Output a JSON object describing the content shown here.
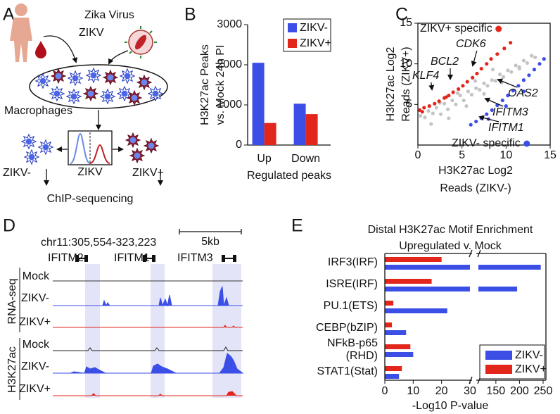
{
  "panel_labels": [
    "A",
    "B",
    "C",
    "D",
    "E"
  ],
  "diagram_a": {
    "virus_title": "Zika Virus",
    "virus_label": "ZIKV",
    "cells_label": "Macrophages",
    "negative_label": "ZIKV-",
    "histogram_label": "ZIKV",
    "positive_label": "ZIKV+",
    "assay_label": "ChIP-sequencing"
  },
  "tracks_d": {
    "locus": "chr11:305,554-323,223",
    "scale": "5kb",
    "genes": [
      "IFITM2",
      "IFITM1",
      "IFITM3"
    ],
    "groups": [
      "RNA-seq",
      "H3K27ac"
    ],
    "tracks": [
      "Mock",
      "ZIKV-",
      "ZIKV+",
      "Mock",
      "ZIKV-",
      "ZIKV+"
    ]
  },
  "chart_data": [
    {
      "type": "bar",
      "ylabel": [
        "H3K27ac Peaks",
        "vs. Mock 24h PI"
      ],
      "xlabel": "Regulated peaks",
      "categories": [
        "Up",
        "Down"
      ],
      "series": [
        {
          "name": "ZIKV-",
          "color": "#3b4ee6",
          "values": [
            2050,
            1030
          ]
        },
        {
          "name": "ZIKV+",
          "color": "#e2261b",
          "values": [
            550,
            770
          ]
        }
      ],
      "ylim": [
        0,
        3000
      ],
      "yticks": [
        0,
        1000,
        2000,
        3000
      ],
      "legend": "upper-right"
    },
    {
      "type": "scatter",
      "xlabel": [
        "H3K27ac Log2",
        "Reads (ZIKV-)"
      ],
      "ylabel": [
        "H3K27ac Log2",
        "Reads (ZIKV+)"
      ],
      "xlim": [
        0,
        15
      ],
      "ylim": [
        0,
        15
      ],
      "xticks": [
        0,
        5,
        10,
        15
      ],
      "yticks": [
        5,
        10,
        15
      ],
      "series": [
        {
          "color": "#c4c4c4",
          "x": [
            0.3,
            0.8,
            1.2,
            1.7,
            2.1,
            2.6,
            3.0,
            3.4,
            3.9,
            4.3,
            4.8,
            5.2,
            5.7,
            6.1,
            6.6,
            7.0,
            7.5,
            7.9,
            8.4,
            8.8,
            9.3,
            9.7,
            10.2,
            10.6,
            11.1,
            11.5,
            12.0,
            12.4,
            12.9,
            13.3,
            1.5,
            3.5,
            5.5,
            7.5,
            9.5,
            11.5,
            2.5,
            4.5,
            6.5,
            8.5
          ],
          "y": [
            3.6,
            3.4,
            4.2,
            3.9,
            4.6,
            3.8,
            5.1,
            4.4,
            5.5,
            5.0,
            6.1,
            5.5,
            6.6,
            6.2,
            7.0,
            6.8,
            7.6,
            7.3,
            8.0,
            7.9,
            8.7,
            8.4,
            9.2,
            9.0,
            9.8,
            9.6,
            10.4,
            10.1,
            11.0,
            10.8,
            2.6,
            3.3,
            4.8,
            6.3,
            7.7,
            9.4,
            5.2,
            6.4,
            7.9,
            9.3
          ]
        },
        {
          "name": "ZIKV+ specific",
          "color": "#e2261b",
          "x": [
            0.2,
            0.7,
            1.3,
            1.9,
            2.4,
            3.0,
            3.5,
            4.0,
            4.6,
            5.1,
            5.6,
            6.2,
            6.7,
            7.2,
            7.8,
            8.3,
            0.5,
            3.2,
            9.0,
            9.8,
            10.5
          ],
          "y": [
            4.3,
            4.6,
            4.8,
            5.1,
            5.4,
            5.8,
            6.1,
            6.5,
            6.9,
            7.3,
            7.8,
            8.3,
            8.8,
            9.4,
            10.0,
            10.6,
            4.1,
            5.9,
            11.2,
            11.9,
            12.6
          ]
        },
        {
          "name": "ZIKV- specific",
          "color": "#3b4ee6",
          "x": [
            6.0,
            6.6,
            7.2,
            7.8,
            8.4,
            9.0,
            9.6,
            10.2,
            10.8,
            11.4,
            12.0,
            12.6,
            13.2,
            13.8,
            14.3,
            8.0,
            10.0,
            12.0
          ],
          "y": [
            2.5,
            2.9,
            3.3,
            3.8,
            4.3,
            4.9,
            5.5,
            6.1,
            6.7,
            7.3,
            8.0,
            8.6,
            9.3,
            10.0,
            10.6,
            3.2,
            4.8,
            6.6
          ]
        }
      ],
      "annotations": [
        "CDK6",
        "BCL2",
        "KLF4",
        "OAS2",
        "IFITM3",
        "IFITM1"
      ]
    },
    {
      "type": "barh",
      "title": "Distal H3K27ac Motif Enrichment",
      "subtitle": "Upregulated v. Mock",
      "xlabel": "-Log10 P-value",
      "categories": [
        "IRF3(IRF)",
        "ISRE(IRF)",
        "PU.1(ETS)",
        "CEBP(bZIP)",
        "NFkB-p65\n(RHD)",
        "STAT1(Stat)"
      ],
      "series": [
        {
          "name": "ZIKV-",
          "color": "#3b4ee6",
          "values": [
            245,
            195,
            22,
            7.5,
            10,
            5
          ]
        },
        {
          "name": "ZIKV+",
          "color": "#e2261b",
          "values": [
            20,
            16.5,
            3,
            2.5,
            9,
            6
          ]
        }
      ],
      "xlim": [
        0,
        250
      ],
      "xbreak": [
        30,
        113
      ],
      "xticks": [
        0,
        10,
        20,
        30,
        150,
        200,
        250
      ],
      "legend": "lower-right"
    }
  ]
}
